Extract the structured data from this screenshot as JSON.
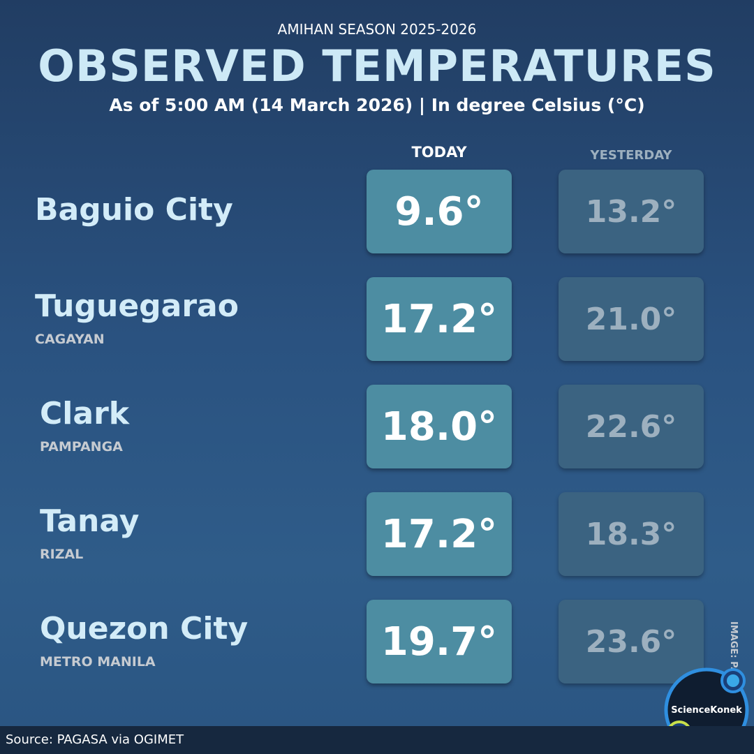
{
  "header": {
    "kicker": "AMIHAN SEASON 2025-2026",
    "title": "OBSERVED TEMPERATURES",
    "subtitle": "As of 5:00 AM (14 March 2026) | In degree Celsius (°C)"
  },
  "table": {
    "columns": [
      "TODAY",
      "YESTERDAY"
    ],
    "rows": [
      {
        "city": "Baguio City",
        "province": null,
        "today": "9.6°",
        "yesterday": "13.2°"
      },
      {
        "city": "Tuguegarao",
        "province": "CAGAYAN",
        "today": "17.2°",
        "yesterday": "21.0°"
      },
      {
        "city": "Clark",
        "province": "PAMPANGA",
        "today": "18.0°",
        "yesterday": "22.6°"
      },
      {
        "city": "Tanay",
        "province": "RIZAL",
        "today": "17.2°",
        "yesterday": "18.3°"
      },
      {
        "city": "Quezon City",
        "province": "METRO MANILA",
        "today": "19.7°",
        "yesterday": "23.6°"
      }
    ]
  },
  "credit": "IMAGE: PAGASA",
  "logo": "ScienceKonek",
  "footer": "Source: PAGASA via OGIMET"
}
